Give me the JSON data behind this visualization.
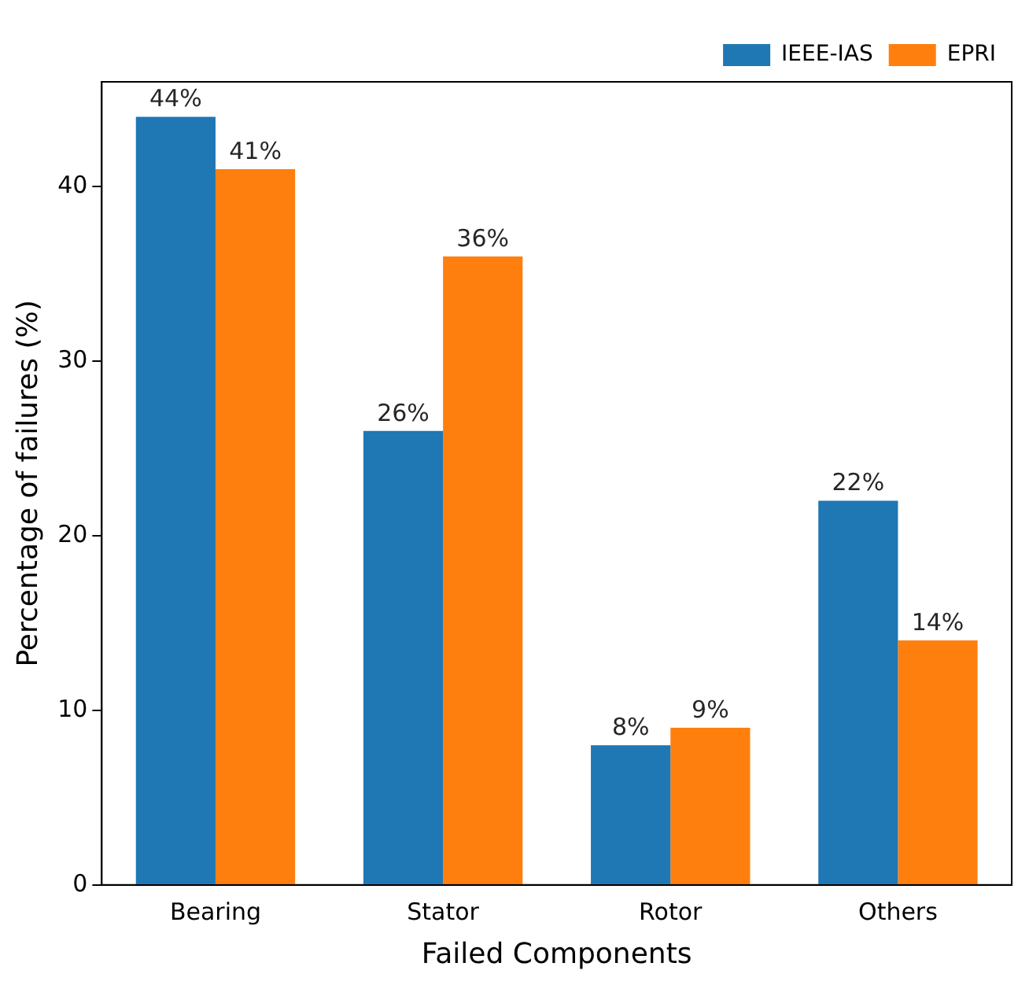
{
  "chart_data": {
    "type": "bar",
    "xlabel": "Failed Components",
    "ylabel": "Percentage of failures (%)",
    "categories": [
      "Bearing",
      "Stator",
      "Rotor",
      "Others"
    ],
    "series": [
      {
        "name": "IEEE-IAS",
        "color": "#1f77b4",
        "values": [
          44,
          26,
          8,
          22
        ],
        "value_labels": [
          "44%",
          "26%",
          "8%",
          "22%"
        ]
      },
      {
        "name": "EPRI",
        "color": "#ff7f0e",
        "values": [
          41,
          36,
          9,
          14
        ],
        "value_labels": [
          "41%",
          "36%",
          "9%",
          "14%"
        ]
      }
    ],
    "ylim": [
      0,
      46
    ],
    "yticks": [
      0,
      10,
      20,
      30,
      40
    ],
    "grid": false,
    "legend": "top right"
  }
}
